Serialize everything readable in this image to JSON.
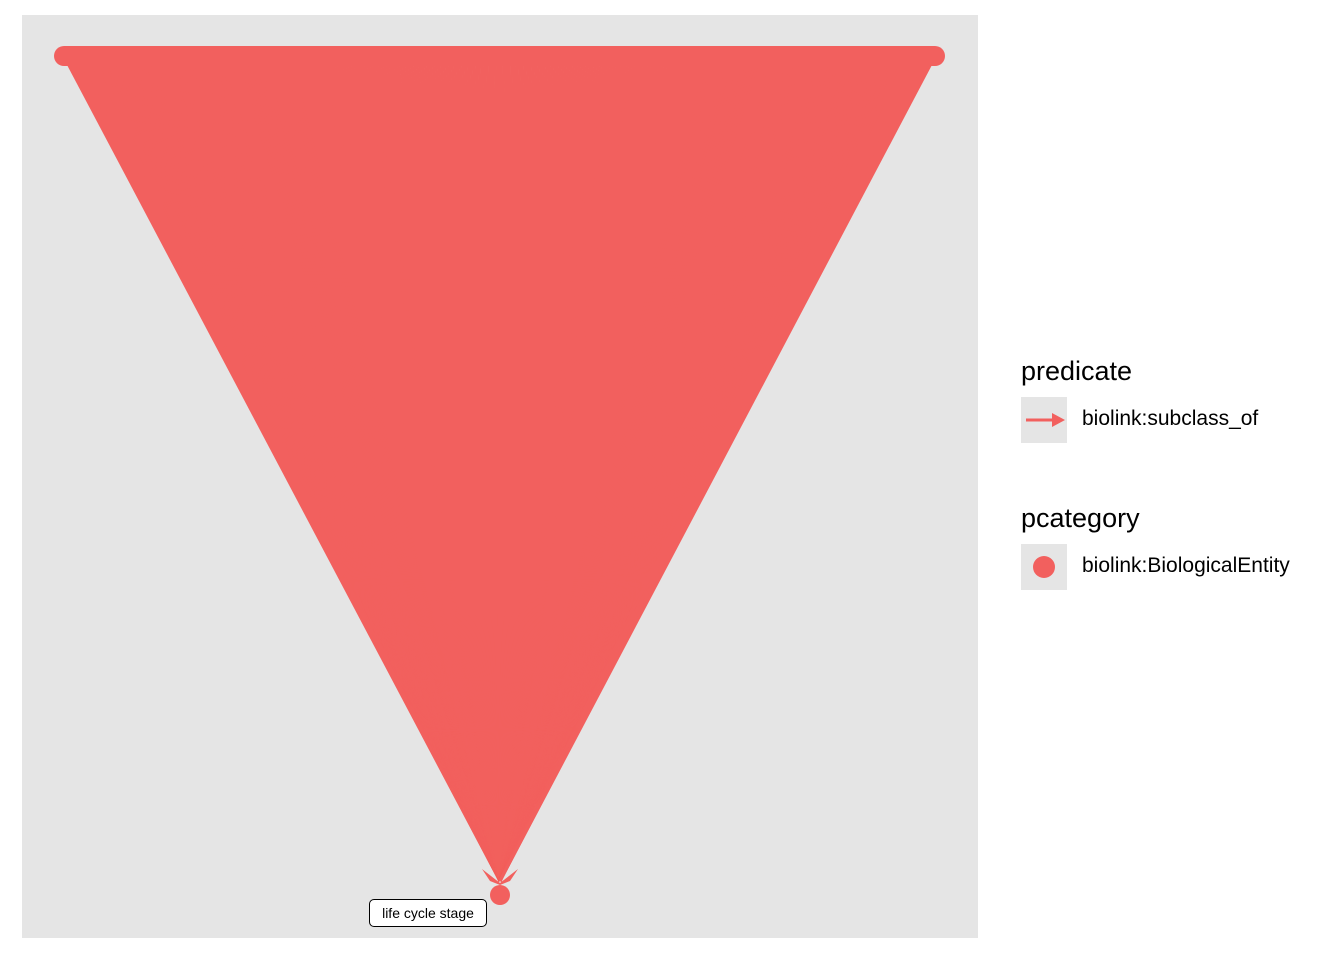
{
  "graph": {
    "center_node_label": "life cycle stage",
    "edge_color": "#f2605e",
    "node_color": "#f2605e",
    "panel_background": "#e5e5e5"
  },
  "legend": {
    "predicate": {
      "title": "predicate",
      "items": [
        {
          "label": "biolink:subclass_of",
          "icon": "arrow-icon",
          "color": "#f2605e"
        }
      ]
    },
    "pcategory": {
      "title": "pcategory",
      "items": [
        {
          "label": "biolink:BiologicalEntity",
          "icon": "dot-icon",
          "color": "#f2605e"
        }
      ]
    }
  }
}
